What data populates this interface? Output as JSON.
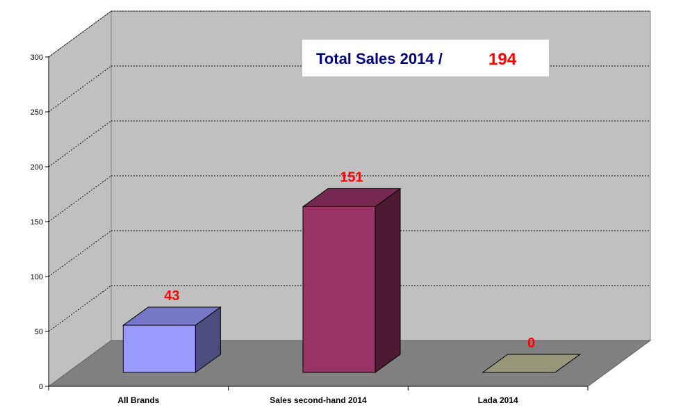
{
  "chart_data": {
    "type": "bar",
    "categories": [
      "All Brands",
      "Sales second-hand 2014",
      "Lada 2014"
    ],
    "values": [
      43,
      151,
      0
    ],
    "data_labels": [
      "43",
      "151",
      "0"
    ],
    "bar_colors": [
      "#9999ff",
      "#993366",
      "#c0c09a"
    ],
    "ylim": [
      0,
      300
    ],
    "y_ticks": [
      0,
      50,
      100,
      150,
      200,
      250,
      300
    ],
    "y_tick_labels": [
      "0",
      "50",
      "100",
      "150",
      "200",
      "250",
      "300"
    ],
    "grid": true,
    "three_d": true,
    "title_box": {
      "label": "Total Sales 2014 /",
      "value": "194"
    },
    "colors": {
      "wall": "#c0c0c0",
      "floor": "#808080",
      "title_label": "#000080",
      "title_value": "#ff0000",
      "data_label": "#ff0000"
    }
  }
}
